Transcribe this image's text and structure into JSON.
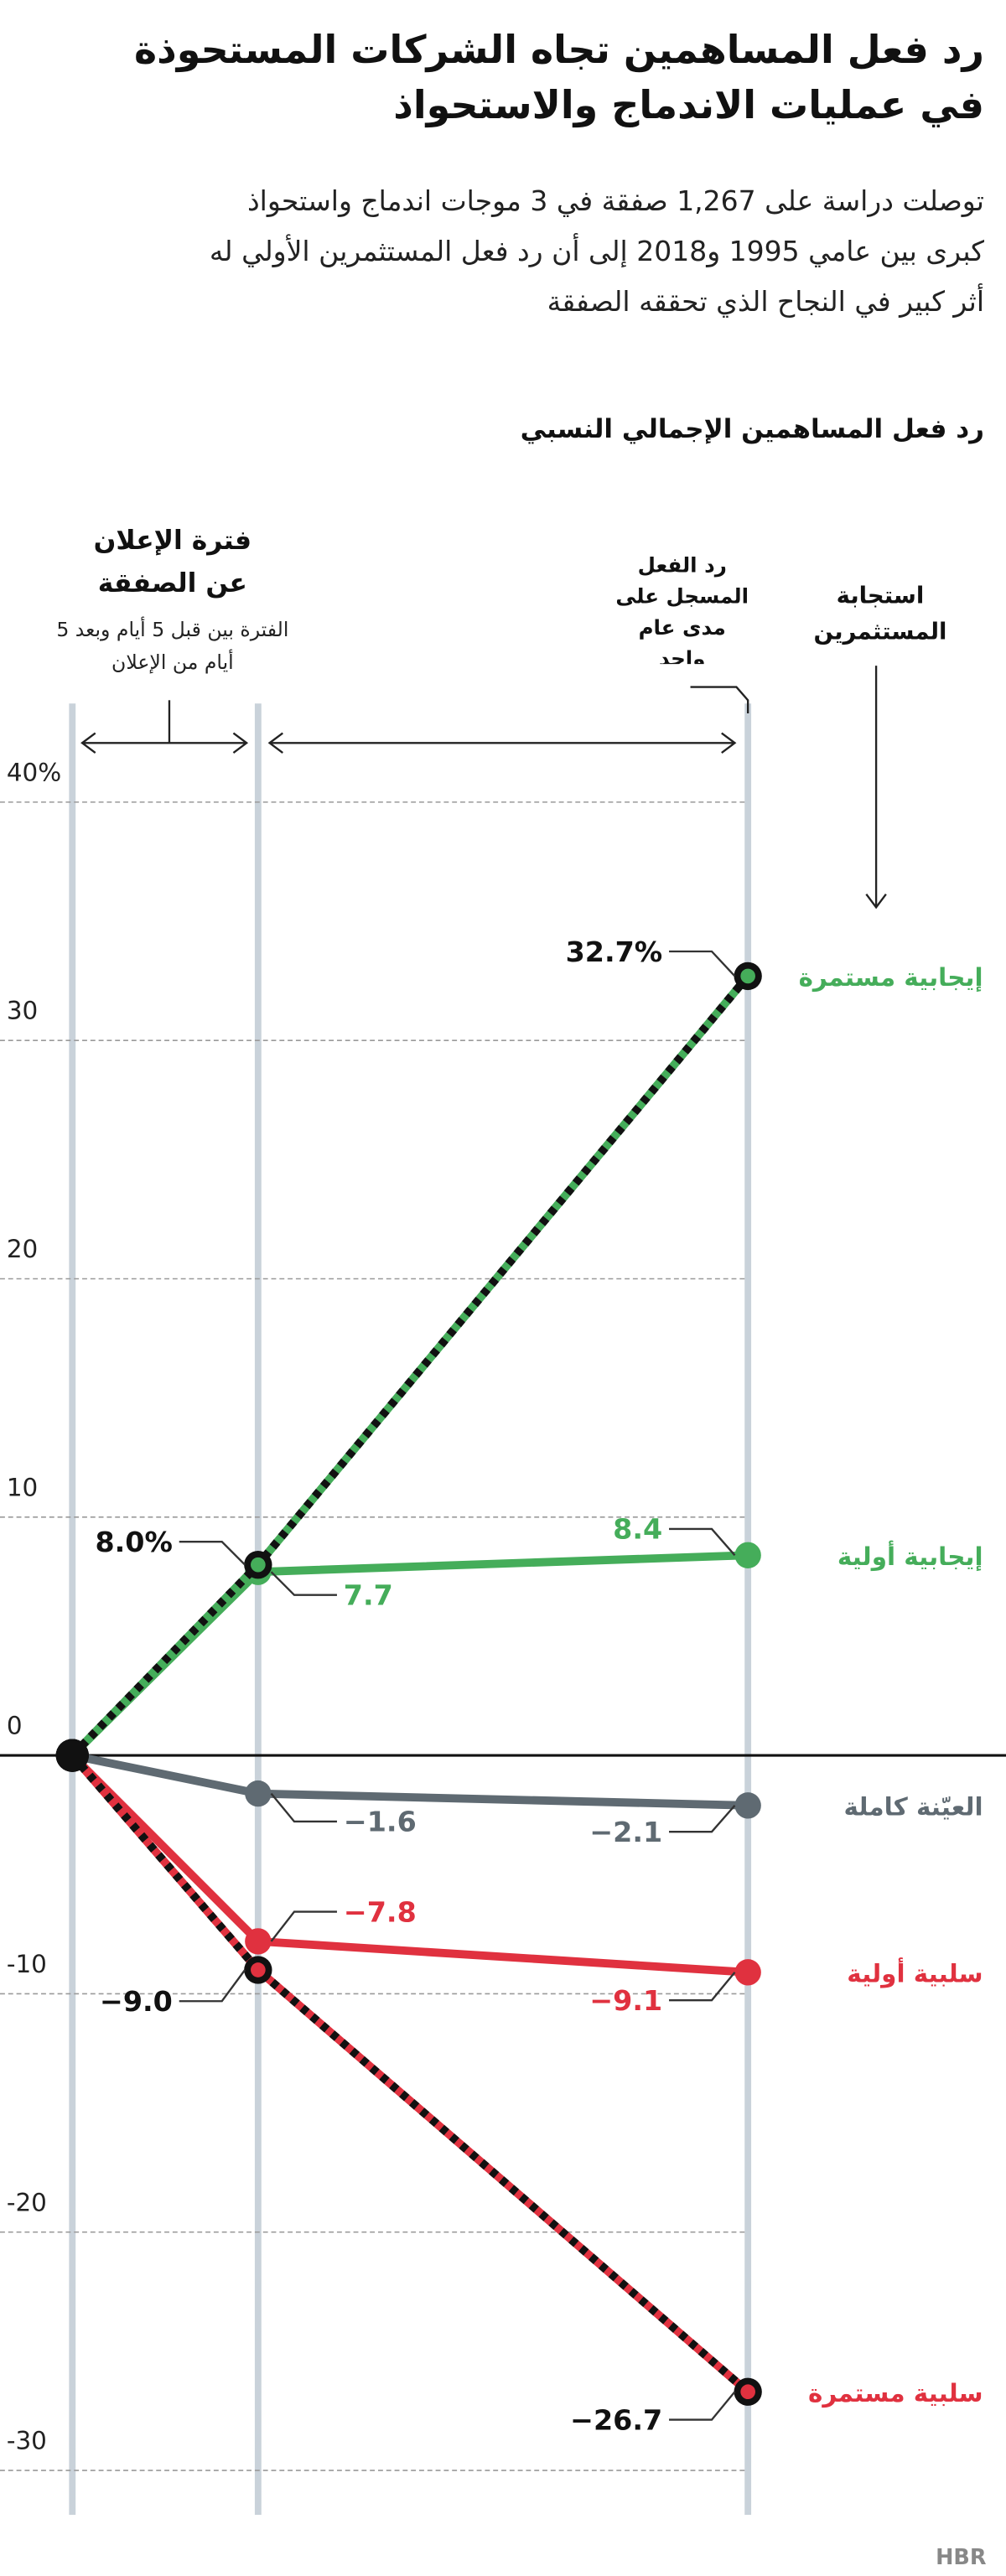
{
  "title": [
    "رد فعل المساهمين تجاه الشركات المستحوذة",
    "في عمليات الاندماج والاستحواذ"
  ],
  "subtitle": [
    "توصلت دراسة على 1,267 صفقة في 3 موجات اندماج واستحواذ",
    "كبرى بين عامي 1995 و2018 إلى أن رد فعل المستثمرين الأولي له",
    "أثر كبير في النجاح الذي تحققه الصفقة"
  ],
  "source": "HBR",
  "chart_data": {
    "type": "line",
    "title": "رد فعل المساهمين الإجمالي النسبي",
    "categories": [
      null,
      "فترة الإعلان عن الصفقة",
      "رد الفعل المسجل على مدى عام واحد"
    ],
    "annotations": [
      "الفترة بين قبل 5 أيام وبعد 5 أيام من الإعلان"
    ],
    "legend_title": "استجابة المستثمرين",
    "ylim": [
      -30,
      40
    ],
    "yticks": [
      {
        "value": 40,
        "label": "40%"
      },
      30,
      20,
      10,
      0,
      -10,
      -20,
      -30
    ],
    "grid": true,
    "start_marker_color": "#111111",
    "series": [
      {
        "name": "إيجابية مستمرة",
        "color": "#45ad5a",
        "dash_color": "#111111",
        "values": [
          0,
          8.0,
          32.7
        ],
        "value_labels": [
          null,
          "8.0%",
          "32.7%"
        ]
      },
      {
        "name": "إيجابية أولية",
        "color": "#45ad5a",
        "values": [
          0,
          7.7,
          8.4
        ],
        "value_labels": [
          null,
          "7.7",
          "8.4"
        ]
      },
      {
        "name": "العيّنة كاملة",
        "color": "#5f6a72",
        "values": [
          0,
          -1.6,
          -2.1
        ],
        "value_labels": [
          null,
          "−1.6",
          "−2.1"
        ]
      },
      {
        "name": "سلبية أولية",
        "color": "#e0313f",
        "values": [
          0,
          -7.8,
          -9.1
        ],
        "value_labels": [
          null,
          "−7.8",
          "−9.1"
        ]
      },
      {
        "name": "سلبية مستمرة",
        "color": "#e0313f",
        "dash_color": "#111111",
        "values": [
          0,
          -9.0,
          -26.7
        ],
        "value_labels": [
          null,
          "−9.0",
          "−26.7"
        ]
      }
    ]
  }
}
